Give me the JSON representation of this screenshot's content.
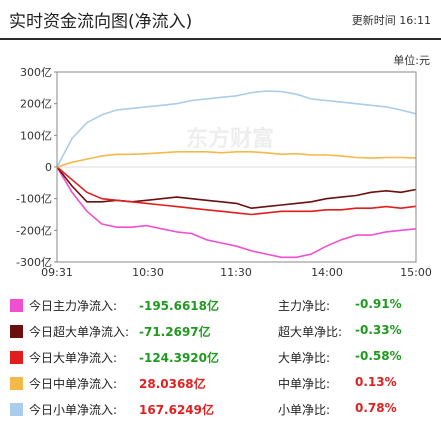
{
  "header": {
    "title": "实时资金流向图(净流入)",
    "update_label": "更新时间",
    "update_time": "16:11"
  },
  "unit_label": "单位:元",
  "watermark": "东方财富",
  "colors": {
    "main": "#f050d0",
    "super": "#6b0f0f",
    "large": "#e01e1e",
    "medium": "#f5b94a",
    "small": "#a9cdea",
    "axis": "#888888",
    "zero": "#dddddd"
  },
  "chart_data": {
    "type": "line",
    "x_ticks": [
      "09:31",
      "10:30",
      "11:30",
      "14:00",
      "15:00"
    ],
    "ylim": [
      -300,
      300
    ],
    "y_ticks": [
      {
        "value": 300,
        "label": "300亿"
      },
      {
        "value": 200,
        "label": "200亿"
      },
      {
        "value": 100,
        "label": "100亿"
      },
      {
        "value": 0,
        "label": "0"
      },
      {
        "value": -100,
        "label": "-100亿"
      },
      {
        "value": -200,
        "label": "-200亿"
      },
      {
        "value": -300,
        "label": "-300亿"
      }
    ],
    "series": [
      {
        "key": "main",
        "values": [
          0,
          -80,
          -140,
          -180,
          -190,
          -190,
          -185,
          -195,
          -205,
          -210,
          -230,
          -240,
          -250,
          -265,
          -275,
          -285,
          -285,
          -275,
          -250,
          -230,
          -215,
          -215,
          -205,
          -200,
          -195
        ]
      },
      {
        "key": "super",
        "values": [
          0,
          -60,
          -110,
          -110,
          -105,
          -110,
          -105,
          -100,
          -95,
          -100,
          -105,
          -110,
          -115,
          -130,
          -125,
          -120,
          -115,
          -110,
          -100,
          -95,
          -90,
          -80,
          -75,
          -80,
          -71
        ]
      },
      {
        "key": "large",
        "values": [
          0,
          -40,
          -80,
          -100,
          -105,
          -110,
          -115,
          -120,
          -125,
          -130,
          -135,
          -140,
          -145,
          -150,
          -145,
          -140,
          -140,
          -140,
          -135,
          -135,
          -130,
          -130,
          -125,
          -130,
          -124
        ]
      },
      {
        "key": "medium",
        "values": [
          0,
          15,
          25,
          35,
          40,
          40,
          42,
          45,
          48,
          48,
          48,
          45,
          48,
          48,
          45,
          40,
          42,
          38,
          38,
          35,
          30,
          28,
          30,
          30,
          28
        ]
      },
      {
        "key": "small",
        "values": [
          0,
          90,
          140,
          165,
          180,
          185,
          190,
          195,
          200,
          210,
          215,
          220,
          225,
          235,
          240,
          238,
          230,
          215,
          210,
          205,
          200,
          195,
          190,
          180,
          168
        ]
      }
    ]
  },
  "legend": [
    {
      "key": "main",
      "name": "今日主力净流入:",
      "value": "-195.6618亿",
      "ratio_name": "主力净比:",
      "ratio_value": "-0.91%"
    },
    {
      "key": "super",
      "name": "今日超大单净流入:",
      "value": "-71.2697亿",
      "ratio_name": "超大单净比:",
      "ratio_value": "-0.33%"
    },
    {
      "key": "large",
      "name": "今日大单净流入:",
      "value": "-124.3920亿",
      "ratio_name": "大单净比:",
      "ratio_value": "-0.58%"
    },
    {
      "key": "medium",
      "name": "今日中单净流入:",
      "value": "28.0368亿",
      "ratio_name": "中单净比:",
      "ratio_value": "0.13%"
    },
    {
      "key": "small",
      "name": "今日小单净流入:",
      "value": "167.6249亿",
      "ratio_name": "小单净比:",
      "ratio_value": "0.78%"
    }
  ]
}
